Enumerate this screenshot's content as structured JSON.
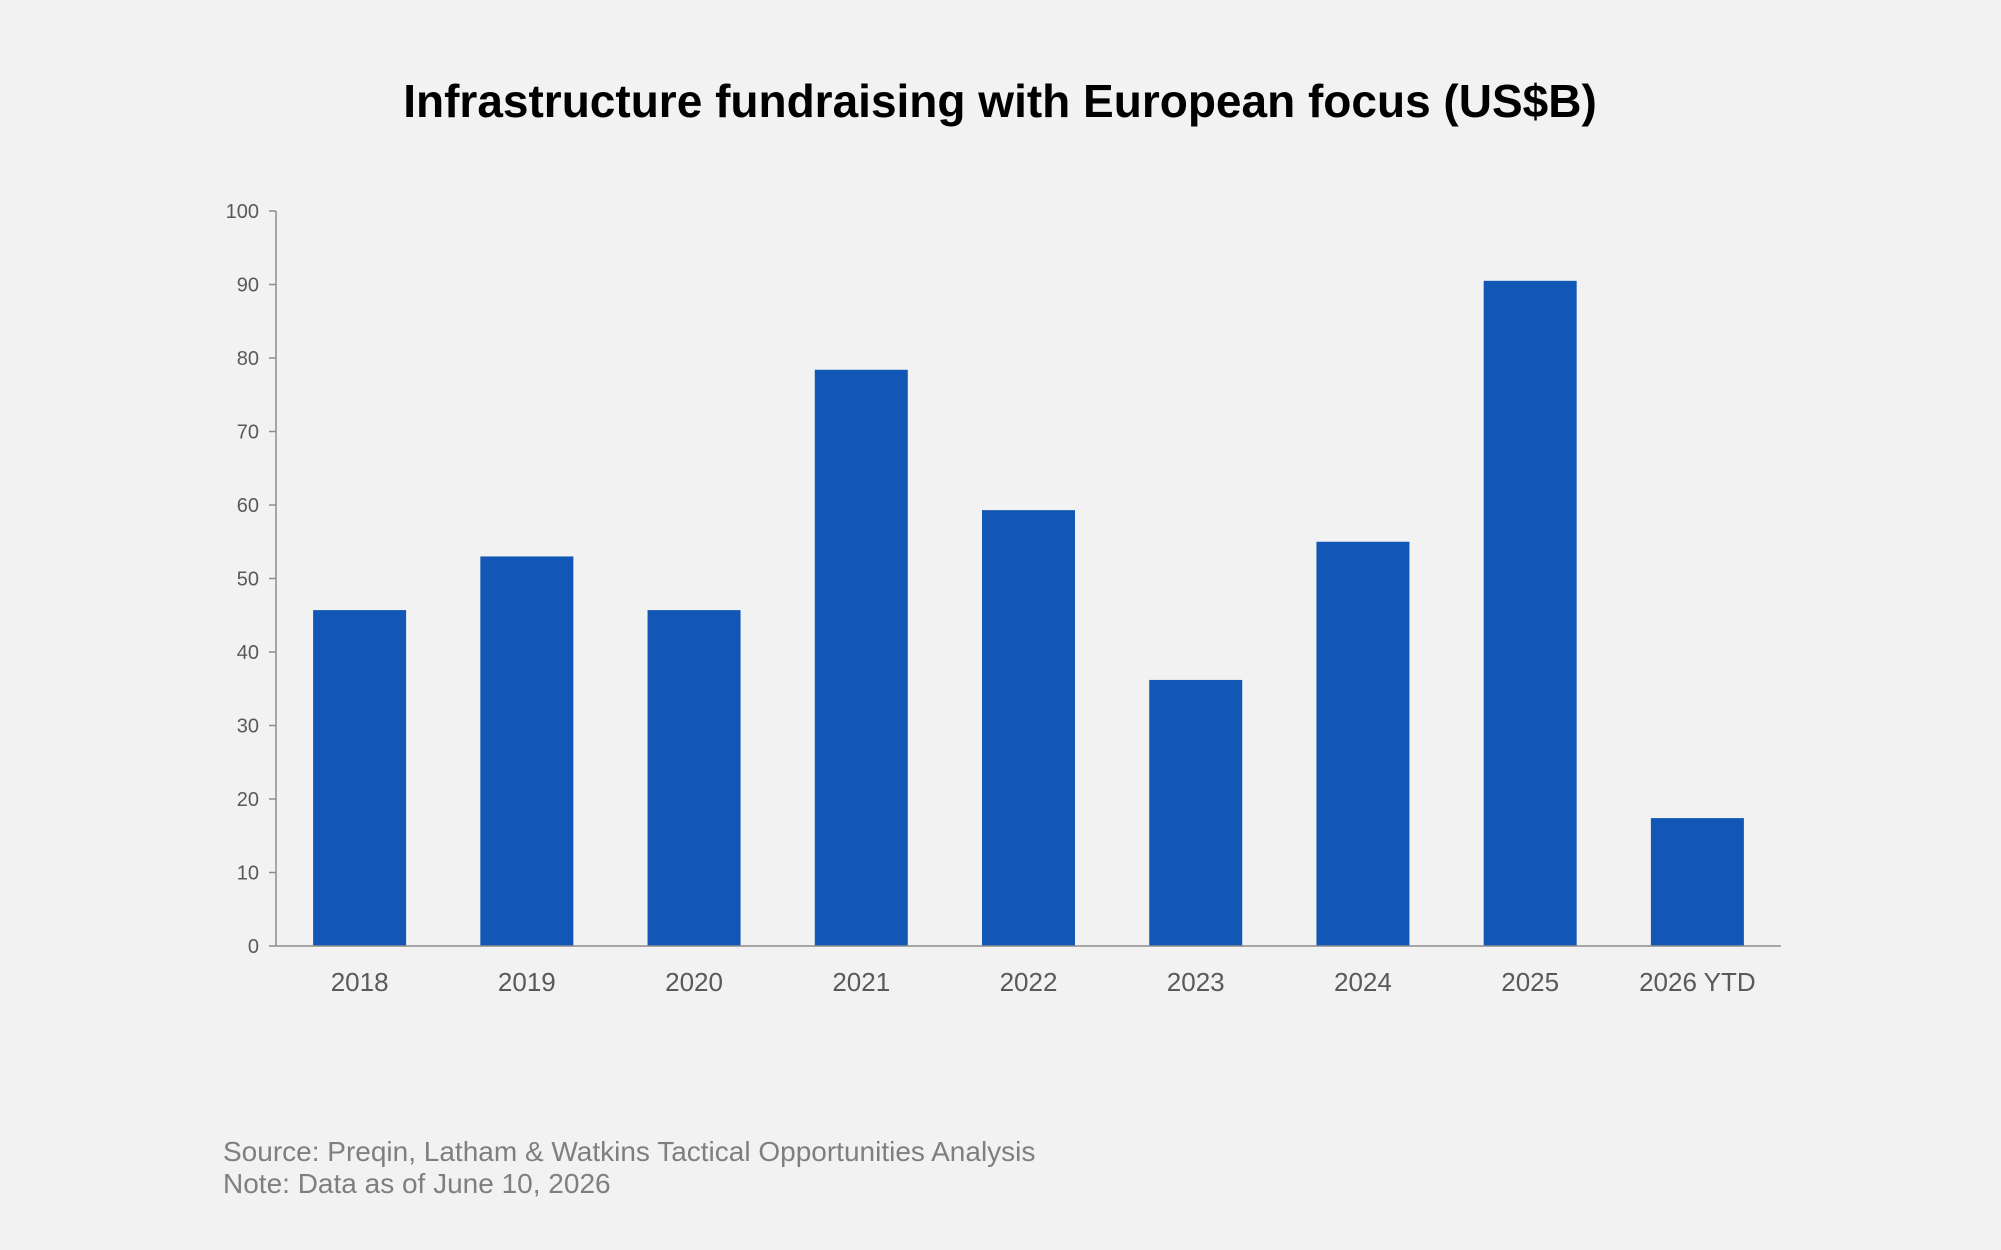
{
  "chart_data": {
    "type": "bar",
    "title": "Infrastructure fundraising with European focus (US$B)",
    "xlabel": "",
    "ylabel": "",
    "categories": [
      "2018",
      "2019",
      "2020",
      "2021",
      "2022",
      "2023",
      "2024",
      "2025",
      "2026 YTD"
    ],
    "values": [
      45.7,
      53.0,
      45.7,
      78.4,
      59.3,
      36.2,
      55.0,
      90.5,
      17.4
    ],
    "ylim": [
      0,
      100
    ],
    "yticks": [
      "0",
      "10",
      "20",
      "30",
      "40",
      "50",
      "60",
      "70",
      "80",
      "90",
      "100"
    ],
    "grid": false,
    "legend": "none",
    "bar_color": "#1257b5"
  },
  "footer": {
    "source": "Source: Preqin, Latham & Watkins Tactical Opportunities Analysis",
    "note": "Note: Data as of June 10, 2026"
  }
}
